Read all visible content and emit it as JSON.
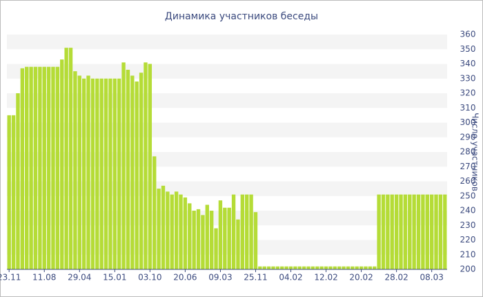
{
  "chart_data": {
    "type": "bar",
    "title": "Динамика участников беседы",
    "y_label": "Число участников",
    "categories": [
      "23.11",
      null,
      null,
      null,
      null,
      null,
      null,
      null,
      "11.08",
      null,
      null,
      null,
      null,
      null,
      null,
      null,
      "29.04",
      null,
      null,
      null,
      null,
      null,
      null,
      null,
      "15.01",
      null,
      null,
      null,
      null,
      null,
      null,
      null,
      "03.10",
      null,
      null,
      null,
      null,
      null,
      null,
      null,
      "20.06",
      null,
      null,
      null,
      null,
      null,
      null,
      null,
      "09.03",
      null,
      null,
      null,
      null,
      null,
      null,
      null,
      "25.11",
      null,
      null,
      null,
      null,
      null,
      null,
      null,
      "04.02",
      null,
      null,
      null,
      null,
      null,
      null,
      null,
      "12.02",
      null,
      null,
      null,
      null,
      null,
      null,
      null,
      "20.02",
      null,
      null,
      null,
      null,
      null,
      null,
      null,
      "28.02",
      null,
      null,
      null,
      null,
      null,
      null,
      null,
      "08.03",
      null,
      null,
      null
    ],
    "values": [
      305,
      305,
      320,
      337,
      338,
      338,
      338,
      338,
      338,
      338,
      338,
      338,
      343,
      351,
      351,
      335,
      332,
      330,
      332,
      330,
      330,
      330,
      330,
      330,
      330,
      330,
      341,
      336,
      332,
      328,
      334,
      341,
      340,
      277,
      255,
      257,
      253,
      251,
      253,
      251,
      249,
      245,
      240,
      241,
      237,
      244,
      240,
      228,
      247,
      242,
      242,
      251,
      234,
      251,
      251,
      251,
      239,
      202,
      202,
      202,
      202,
      202,
      202,
      202,
      202,
      202,
      202,
      202,
      202,
      202,
      202,
      202,
      202,
      202,
      202,
      202,
      202,
      202,
      202,
      202,
      202,
      202,
      202,
      202,
      251,
      251,
      251,
      251,
      251,
      251,
      251,
      251,
      251,
      251,
      251,
      251,
      251,
      251,
      251,
      251
    ],
    "color": "#b5dc37",
    "ylim": [
      200,
      360
    ],
    "yticks": [
      200,
      210,
      220,
      230,
      240,
      250,
      260,
      270,
      280,
      290,
      300,
      310,
      320,
      330,
      340,
      350,
      360
    ],
    "grid": true,
    "yaxis_position": "right"
  }
}
